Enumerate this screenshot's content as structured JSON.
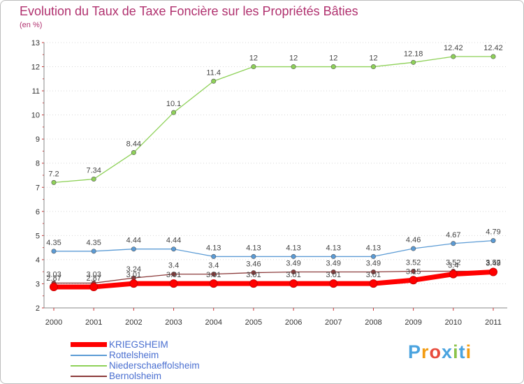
{
  "title": "Evolution du Taux de Taxe Foncière sur les Propriétés Bâties",
  "unit_label": "(en %)",
  "logo": {
    "text": "Proxiti",
    "letters": [
      "P",
      "r",
      "o",
      "x",
      "i",
      "t",
      "i"
    ],
    "colors": [
      "#4aa3df",
      "#f39c12",
      "#e84c3d",
      "#4aa3df",
      "#8bc34a",
      "#4aa3df",
      "#f39c12"
    ]
  },
  "chart_data": {
    "type": "line",
    "x": [
      "2000",
      "2001",
      "2002",
      "2003",
      "2004",
      "2005",
      "2006",
      "2007",
      "2008",
      "2009",
      "2010",
      "2011"
    ],
    "ylim": [
      2,
      13
    ],
    "yticks": [
      "2",
      "3",
      "4",
      "5",
      "6",
      "7",
      "8",
      "9",
      "10",
      "11",
      "12",
      "13"
    ],
    "grid": "horizontal-dotted",
    "title": "Evolution du Taux de Taxe Foncière sur les Propriétés Bâties",
    "ylabel": "(en %)",
    "series": [
      {
        "name": "KRIEGSHEIM",
        "color": "#ff0000",
        "values": [
          2.87,
          2.87,
          3.01,
          3.01,
          3.01,
          3.01,
          3.01,
          3.01,
          3.01,
          3.15,
          3.4,
          3.49
        ],
        "labels": [
          "2.87",
          "2.87",
          "3.01",
          "3.01",
          "3.01",
          "3.01",
          "3.01",
          "3.01",
          "3.01",
          "3.15",
          "3.4",
          "3.49"
        ]
      },
      {
        "name": "Rottelsheim",
        "color": "#5b9bd5",
        "values": [
          4.35,
          4.35,
          4.44,
          4.44,
          4.13,
          4.13,
          4.13,
          4.13,
          4.13,
          4.46,
          4.67,
          4.79
        ],
        "labels": [
          "4.35",
          "4.35",
          "4.44",
          "4.44",
          "4.13",
          "4.13",
          "4.13",
          "4.13",
          "4.13",
          "4.46",
          "4.67",
          "4.79"
        ]
      },
      {
        "name": "Niederschaeffolsheim",
        "color": "#8ed158",
        "values": [
          7.2,
          7.34,
          8.44,
          10.1,
          11.4,
          12,
          12,
          12,
          12,
          12.18,
          12.42,
          12.42
        ],
        "labels": [
          "7.2",
          "7.34",
          "8.44",
          "10.1",
          "11.4",
          "12",
          "12",
          "12",
          "12",
          "12.18",
          "12.42",
          "12.42"
        ]
      },
      {
        "name": "Bernolsheim",
        "color": "#8b3a3a",
        "values": [
          3.03,
          3.03,
          3.24,
          3.4,
          3.4,
          3.46,
          3.49,
          3.49,
          3.49,
          3.52,
          3.52,
          3.52
        ],
        "labels": [
          "3.03",
          "3.03",
          "3.24",
          "3.4",
          "3.4",
          "3.46",
          "3.49",
          "3.49",
          "3.49",
          "3.52",
          "3.52",
          "3.52"
        ]
      }
    ]
  }
}
